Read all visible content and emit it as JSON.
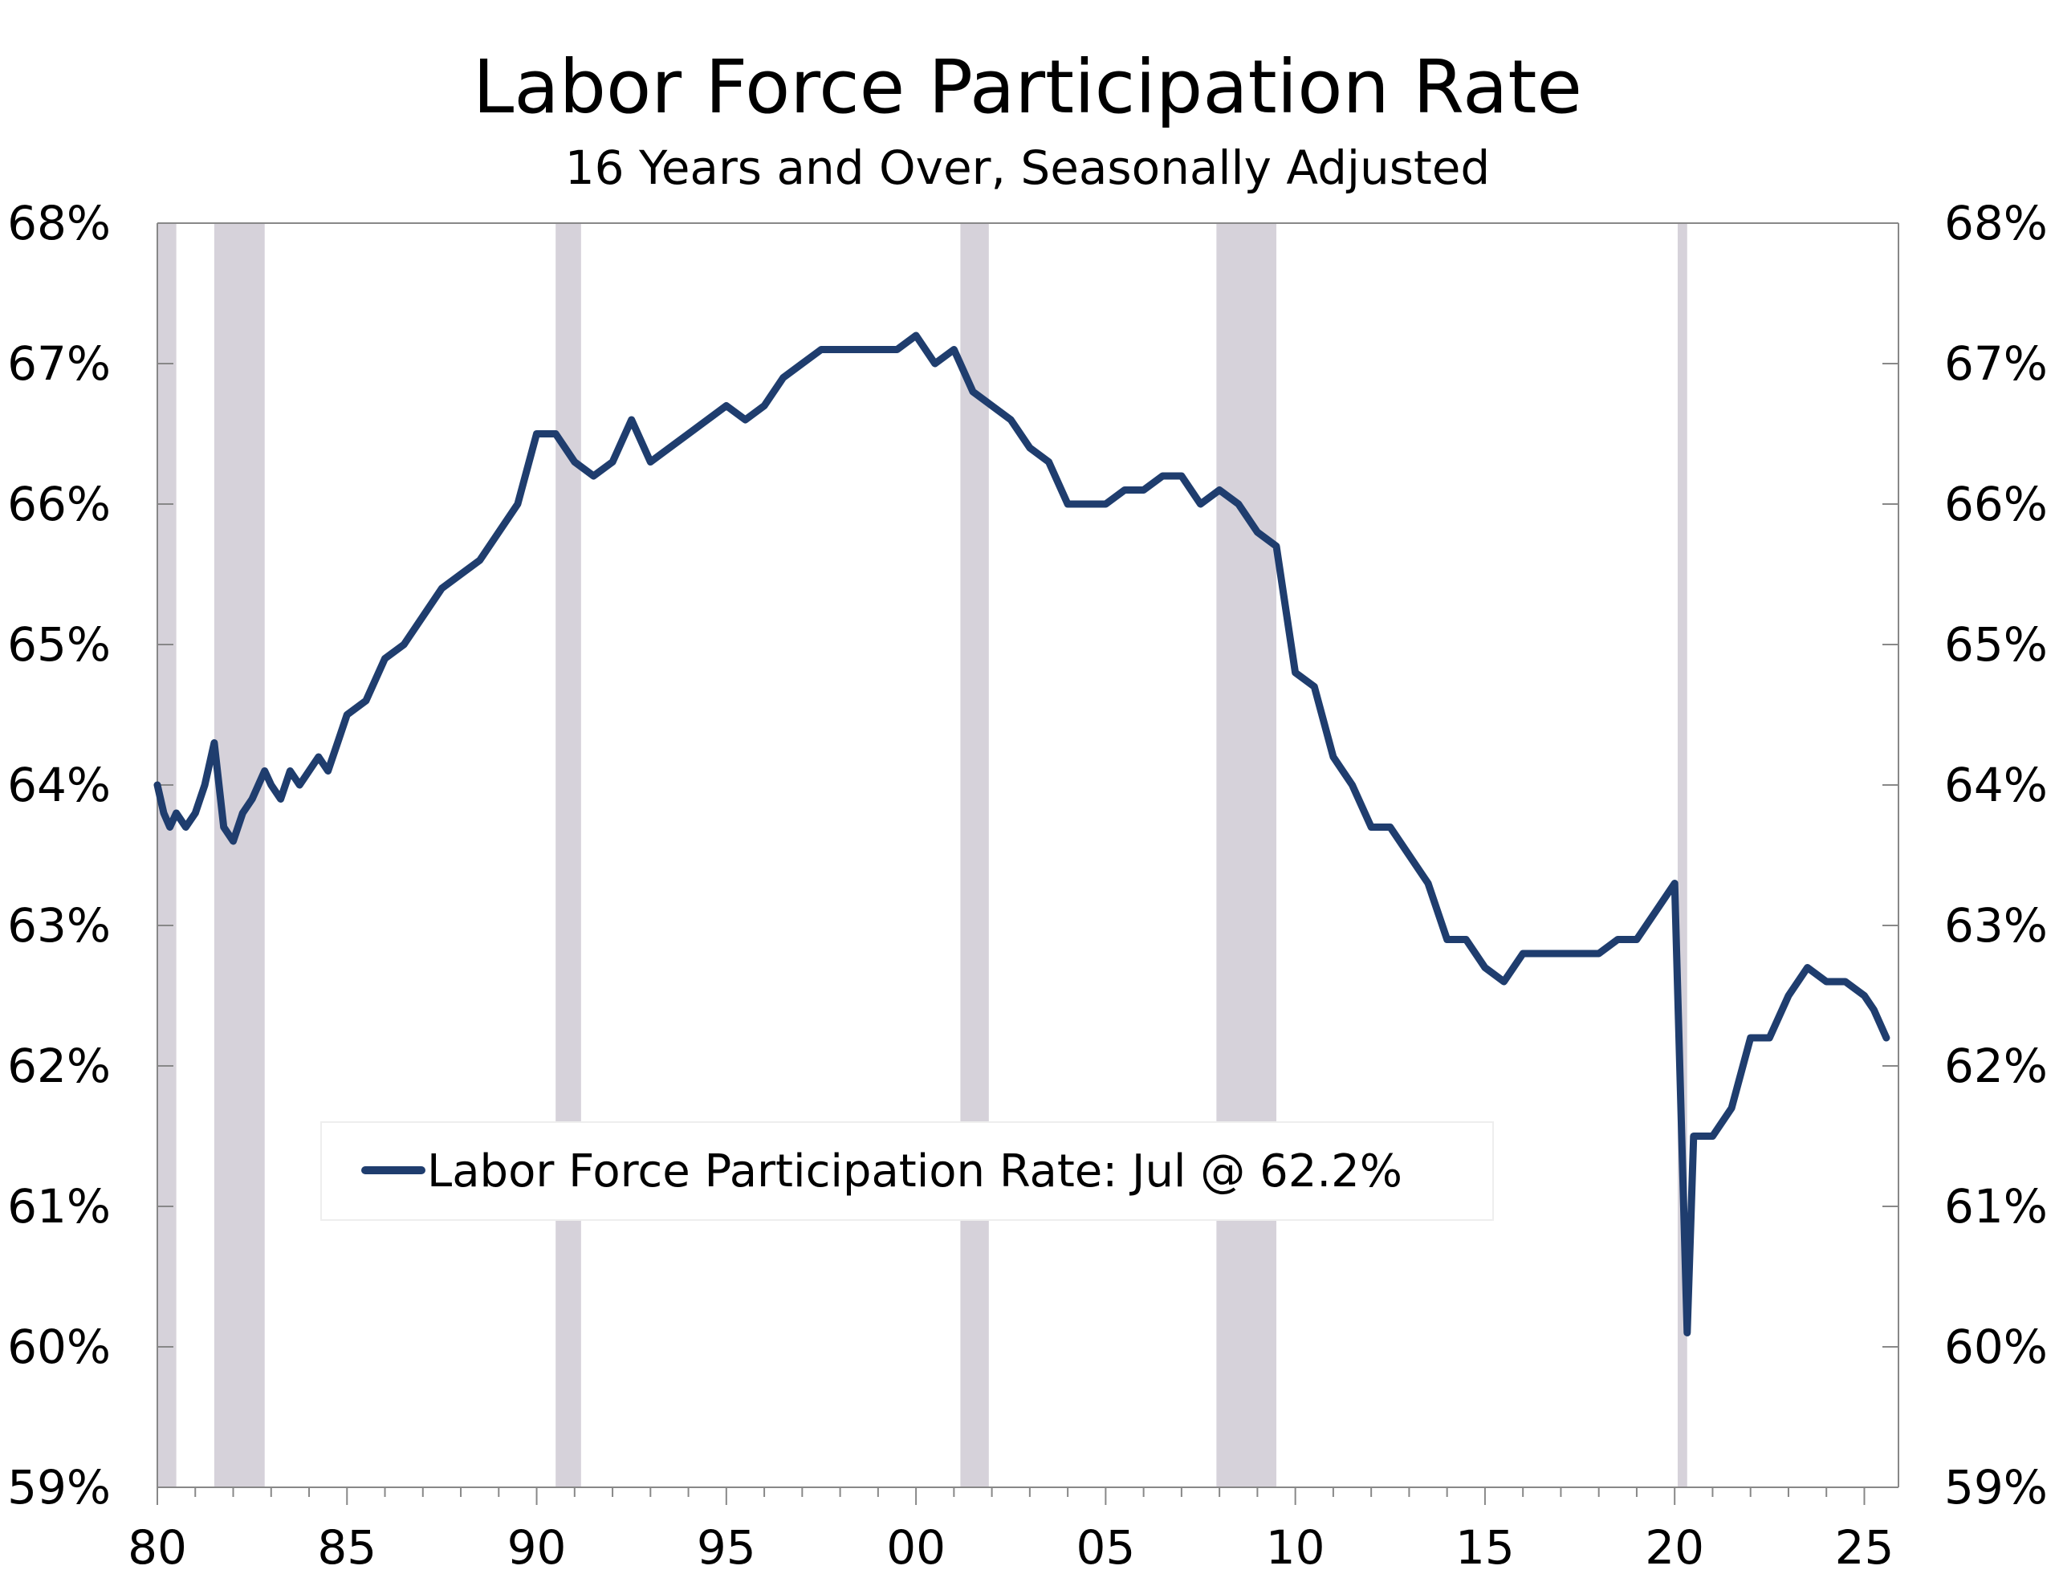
{
  "chart_data": {
    "type": "line",
    "title": "Labor Force Participation Rate",
    "subtitle": "16 Years and Over, Seasonally Adjusted",
    "x_range": [
      1980,
      2025.9
    ],
    "ylim": [
      59,
      68
    ],
    "y_ticks": [
      59,
      60,
      61,
      62,
      63,
      64,
      65,
      66,
      67,
      68
    ],
    "y_tick_labels": [
      "59%",
      "60%",
      "61%",
      "62%",
      "63%",
      "64%",
      "65%",
      "66%",
      "67%",
      "68%"
    ],
    "x_ticks": [
      1980,
      1985,
      1990,
      1995,
      2000,
      2005,
      2010,
      2015,
      2020,
      2025
    ],
    "x_tick_labels": [
      "80",
      "85",
      "90",
      "95",
      "00",
      "05",
      "10",
      "15",
      "20",
      "25"
    ],
    "recessions": [
      [
        1980.0,
        1980.5
      ],
      [
        1981.5,
        1982.83
      ],
      [
        1990.5,
        1991.17
      ],
      [
        2001.17,
        2001.92
      ],
      [
        2007.92,
        2009.5
      ],
      [
        2020.08,
        2020.33
      ]
    ],
    "legend_position": "bottom-center",
    "colors": {
      "line": "#1f3d6e",
      "recession": "#d6d2da"
    },
    "series": [
      {
        "name": "Labor Force Participation Rate: Jul @ 62.2%",
        "points": [
          [
            1980.0,
            64.0
          ],
          [
            1980.17,
            63.8
          ],
          [
            1980.33,
            63.7
          ],
          [
            1980.5,
            63.8
          ],
          [
            1980.75,
            63.7
          ],
          [
            1981.0,
            63.8
          ],
          [
            1981.25,
            64.0
          ],
          [
            1981.5,
            64.3
          ],
          [
            1981.75,
            63.7
          ],
          [
            1982.0,
            63.6
          ],
          [
            1982.25,
            63.8
          ],
          [
            1982.5,
            63.9
          ],
          [
            1982.83,
            64.1
          ],
          [
            1983.0,
            64.0
          ],
          [
            1983.25,
            63.9
          ],
          [
            1983.5,
            64.1
          ],
          [
            1983.75,
            64.0
          ],
          [
            1984.0,
            64.1
          ],
          [
            1984.25,
            64.2
          ],
          [
            1984.5,
            64.1
          ],
          [
            1984.75,
            64.3
          ],
          [
            1985.0,
            64.5
          ],
          [
            1985.5,
            64.6
          ],
          [
            1986.0,
            64.9
          ],
          [
            1986.5,
            65.0
          ],
          [
            1987.0,
            65.2
          ],
          [
            1987.5,
            65.4
          ],
          [
            1988.0,
            65.5
          ],
          [
            1988.5,
            65.6
          ],
          [
            1989.0,
            65.8
          ],
          [
            1989.5,
            66.0
          ],
          [
            1990.0,
            66.5
          ],
          [
            1990.5,
            66.5
          ],
          [
            1991.0,
            66.3
          ],
          [
            1991.5,
            66.2
          ],
          [
            1992.0,
            66.3
          ],
          [
            1992.5,
            66.6
          ],
          [
            1993.0,
            66.3
          ],
          [
            1993.5,
            66.4
          ],
          [
            1994.0,
            66.5
          ],
          [
            1994.5,
            66.6
          ],
          [
            1995.0,
            66.7
          ],
          [
            1995.5,
            66.6
          ],
          [
            1996.0,
            66.7
          ],
          [
            1996.5,
            66.9
          ],
          [
            1997.0,
            67.0
          ],
          [
            1997.5,
            67.1
          ],
          [
            1998.0,
            67.1
          ],
          [
            1998.5,
            67.1
          ],
          [
            1999.0,
            67.1
          ],
          [
            1999.5,
            67.1
          ],
          [
            2000.0,
            67.2
          ],
          [
            2000.5,
            67.0
          ],
          [
            2001.0,
            67.1
          ],
          [
            2001.5,
            66.8
          ],
          [
            2002.0,
            66.7
          ],
          [
            2002.5,
            66.6
          ],
          [
            2003.0,
            66.4
          ],
          [
            2003.5,
            66.3
          ],
          [
            2004.0,
            66.0
          ],
          [
            2004.5,
            66.0
          ],
          [
            2005.0,
            66.0
          ],
          [
            2005.5,
            66.1
          ],
          [
            2006.0,
            66.1
          ],
          [
            2006.5,
            66.2
          ],
          [
            2007.0,
            66.2
          ],
          [
            2007.5,
            66.0
          ],
          [
            2008.0,
            66.1
          ],
          [
            2008.5,
            66.0
          ],
          [
            2009.0,
            65.8
          ],
          [
            2009.5,
            65.7
          ],
          [
            2010.0,
            64.8
          ],
          [
            2010.5,
            64.7
          ],
          [
            2011.0,
            64.2
          ],
          [
            2011.5,
            64.0
          ],
          [
            2012.0,
            63.7
          ],
          [
            2012.5,
            63.7
          ],
          [
            2013.0,
            63.5
          ],
          [
            2013.5,
            63.3
          ],
          [
            2014.0,
            62.9
          ],
          [
            2014.5,
            62.9
          ],
          [
            2015.0,
            62.7
          ],
          [
            2015.5,
            62.6
          ],
          [
            2016.0,
            62.8
          ],
          [
            2016.5,
            62.8
          ],
          [
            2017.0,
            62.8
          ],
          [
            2017.5,
            62.8
          ],
          [
            2018.0,
            62.8
          ],
          [
            2018.5,
            62.9
          ],
          [
            2019.0,
            62.9
          ],
          [
            2019.5,
            63.1
          ],
          [
            2020.0,
            63.3
          ],
          [
            2020.33,
            60.1
          ],
          [
            2020.5,
            61.5
          ],
          [
            2021.0,
            61.5
          ],
          [
            2021.5,
            61.7
          ],
          [
            2022.0,
            62.2
          ],
          [
            2022.5,
            62.2
          ],
          [
            2023.0,
            62.5
          ],
          [
            2023.5,
            62.7
          ],
          [
            2024.0,
            62.6
          ],
          [
            2024.5,
            62.6
          ],
          [
            2025.0,
            62.5
          ],
          [
            2025.25,
            62.4
          ],
          [
            2025.58,
            62.2
          ]
        ]
      }
    ]
  }
}
